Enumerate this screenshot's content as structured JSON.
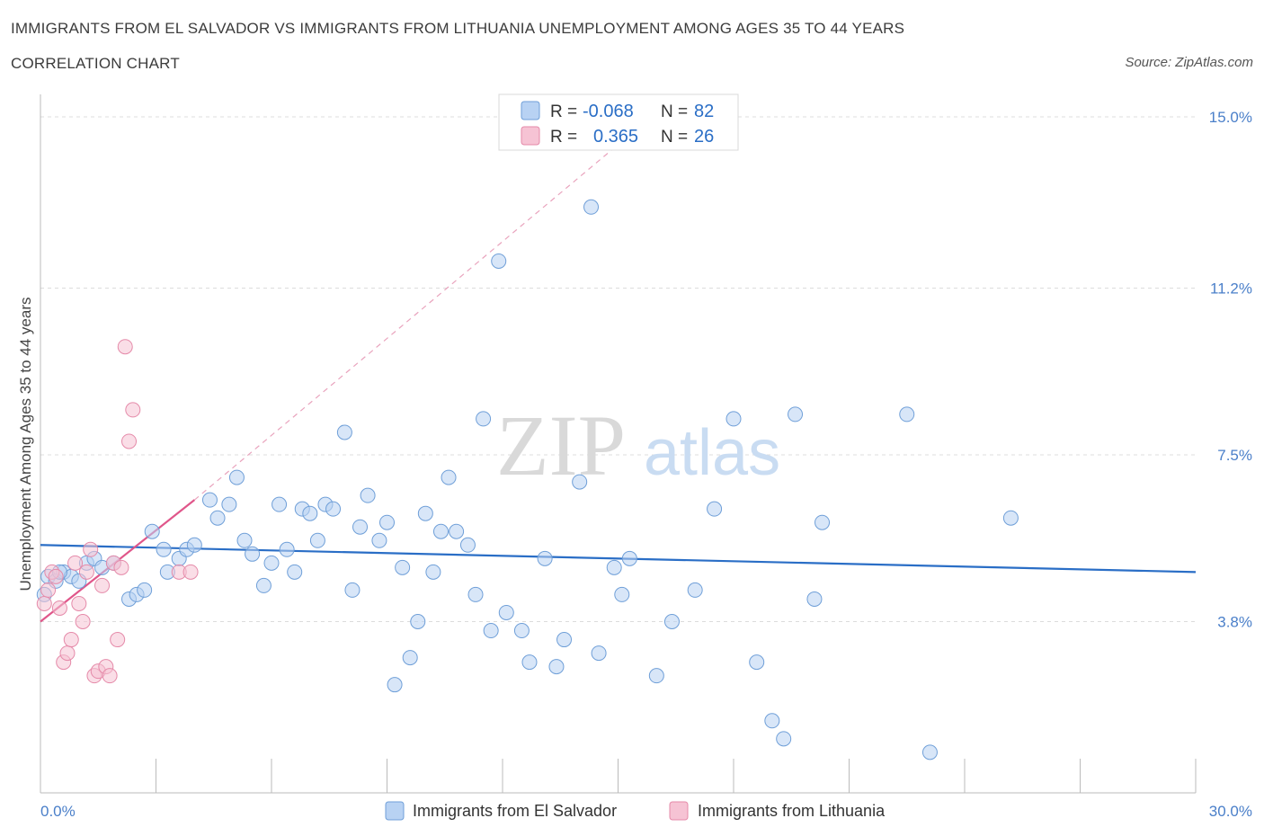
{
  "header": {
    "title": "IMMIGRANTS FROM EL SALVADOR VS IMMIGRANTS FROM LITHUANIA UNEMPLOYMENT AMONG AGES 35 TO 44 YEARS",
    "subtitle": "CORRELATION CHART",
    "source": "Source: ZipAtlas.com"
  },
  "watermark": {
    "zip": "ZIP",
    "atlas": "atlas"
  },
  "colors": {
    "blue_fill": "#b8d2f3",
    "blue_stroke": "#6f9fd8",
    "blue_line": "#2a6ec6",
    "pink_fill": "#f6c3d4",
    "pink_stroke": "#e58aa9",
    "pink_line": "#e0568a",
    "grid": "#dcdcdc",
    "axis": "#bbbbbb"
  },
  "legend_top": {
    "rows": [
      {
        "r_label": "R =",
        "r_value": "-0.068",
        "n_label": "N =",
        "n_value": "82",
        "series": "blue"
      },
      {
        "r_label": "R =",
        "r_value": "0.365",
        "n_label": "N =",
        "n_value": "26",
        "series": "pink"
      }
    ]
  },
  "legend_bottom": [
    {
      "label": "Immigrants from El Salvador",
      "series": "blue"
    },
    {
      "label": "Immigrants from Lithuania",
      "series": "pink"
    }
  ],
  "chart_data": {
    "type": "scatter",
    "ylabel": "Unemployment Among Ages 35 to 44 years",
    "xlabel": "",
    "xlim": [
      0,
      30
    ],
    "ylim": [
      0,
      15.3
    ],
    "x_tick_labels": [
      {
        "value": 0,
        "label": "0.0%"
      },
      {
        "value": 30,
        "label": "30.0%"
      }
    ],
    "y_tick_labels": [
      {
        "value": 15.0,
        "label": "15.0%"
      },
      {
        "value": 11.2,
        "label": "11.2%"
      },
      {
        "value": 7.5,
        "label": "7.5%"
      },
      {
        "value": 3.8,
        "label": "3.8%"
      }
    ],
    "x_minor_ticks": [
      3,
      6,
      9,
      12,
      15,
      18,
      21,
      24,
      27,
      30
    ],
    "grid": true,
    "series": [
      {
        "name": "Immigrants from El Salvador",
        "color": "blue",
        "points": [
          [
            0.2,
            4.8
          ],
          [
            0.4,
            4.7
          ],
          [
            0.6,
            4.9
          ],
          [
            0.8,
            4.8
          ],
          [
            1.0,
            4.7
          ],
          [
            1.2,
            5.1
          ],
          [
            1.4,
            5.2
          ],
          [
            1.6,
            5.0
          ],
          [
            1.9,
            5.1
          ],
          [
            2.3,
            4.3
          ],
          [
            2.5,
            4.4
          ],
          [
            2.7,
            4.5
          ],
          [
            2.9,
            5.8
          ],
          [
            3.2,
            5.4
          ],
          [
            3.3,
            4.9
          ],
          [
            3.6,
            5.2
          ],
          [
            3.8,
            5.4
          ],
          [
            4.0,
            5.5
          ],
          [
            4.4,
            6.5
          ],
          [
            4.6,
            6.1
          ],
          [
            4.9,
            6.4
          ],
          [
            5.1,
            7.0
          ],
          [
            5.3,
            5.6
          ],
          [
            5.5,
            5.3
          ],
          [
            5.8,
            4.6
          ],
          [
            6.0,
            5.1
          ],
          [
            6.2,
            6.4
          ],
          [
            6.4,
            5.4
          ],
          [
            6.6,
            4.9
          ],
          [
            6.8,
            6.3
          ],
          [
            7.0,
            6.2
          ],
          [
            7.2,
            5.6
          ],
          [
            7.4,
            6.4
          ],
          [
            7.6,
            6.3
          ],
          [
            7.9,
            8.0
          ],
          [
            8.1,
            4.5
          ],
          [
            8.3,
            5.9
          ],
          [
            8.5,
            6.6
          ],
          [
            8.8,
            5.6
          ],
          [
            9.0,
            6.0
          ],
          [
            9.2,
            2.4
          ],
          [
            9.4,
            5.0
          ],
          [
            9.6,
            3.0
          ],
          [
            9.8,
            3.8
          ],
          [
            10.0,
            6.2
          ],
          [
            10.2,
            4.9
          ],
          [
            10.4,
            5.8
          ],
          [
            10.6,
            7.0
          ],
          [
            10.8,
            5.8
          ],
          [
            11.1,
            5.5
          ],
          [
            11.3,
            4.4
          ],
          [
            11.5,
            8.3
          ],
          [
            11.7,
            3.6
          ],
          [
            11.9,
            11.8
          ],
          [
            12.1,
            4.0
          ],
          [
            12.5,
            3.6
          ],
          [
            12.7,
            2.9
          ],
          [
            13.1,
            5.2
          ],
          [
            13.4,
            2.8
          ],
          [
            13.6,
            3.4
          ],
          [
            14.0,
            6.9
          ],
          [
            14.3,
            13.0
          ],
          [
            14.5,
            3.1
          ],
          [
            14.9,
            5.0
          ],
          [
            15.1,
            4.4
          ],
          [
            15.3,
            5.2
          ],
          [
            16.0,
            2.6
          ],
          [
            16.4,
            3.8
          ],
          [
            17.0,
            4.5
          ],
          [
            17.5,
            6.3
          ],
          [
            18.0,
            8.3
          ],
          [
            18.6,
            2.9
          ],
          [
            19.0,
            1.6
          ],
          [
            19.3,
            1.2
          ],
          [
            19.6,
            8.4
          ],
          [
            20.1,
            4.3
          ],
          [
            20.3,
            6.0
          ],
          [
            22.5,
            8.4
          ],
          [
            23.1,
            0.9
          ],
          [
            25.2,
            6.1
          ],
          [
            0.1,
            4.4
          ],
          [
            0.5,
            4.9
          ]
        ],
        "trend": {
          "x0": 0,
          "y0": 5.5,
          "x1": 30,
          "y1": 4.9
        }
      },
      {
        "name": "Immigrants from Lithuania",
        "color": "pink",
        "points": [
          [
            0.1,
            4.2
          ],
          [
            0.2,
            4.5
          ],
          [
            0.3,
            4.9
          ],
          [
            0.4,
            4.8
          ],
          [
            0.5,
            4.1
          ],
          [
            0.6,
            2.9
          ],
          [
            0.7,
            3.1
          ],
          [
            0.8,
            3.4
          ],
          [
            0.9,
            5.1
          ],
          [
            1.0,
            4.2
          ],
          [
            1.1,
            3.8
          ],
          [
            1.2,
            4.9
          ],
          [
            1.3,
            5.4
          ],
          [
            1.4,
            2.6
          ],
          [
            1.5,
            2.7
          ],
          [
            1.6,
            4.6
          ],
          [
            1.7,
            2.8
          ],
          [
            1.8,
            2.6
          ],
          [
            1.9,
            5.1
          ],
          [
            2.0,
            3.4
          ],
          [
            2.1,
            5.0
          ],
          [
            2.2,
            9.9
          ],
          [
            2.3,
            7.8
          ],
          [
            2.4,
            8.5
          ],
          [
            3.6,
            4.9
          ],
          [
            3.9,
            4.9
          ]
        ],
        "trend": {
          "x0": 0,
          "y0": 3.8,
          "x1": 4.0,
          "y1": 6.5
        },
        "trend_extended": {
          "x0": 4.0,
          "y0": 6.5,
          "x1": 15.3,
          "y1": 14.6
        }
      }
    ]
  }
}
